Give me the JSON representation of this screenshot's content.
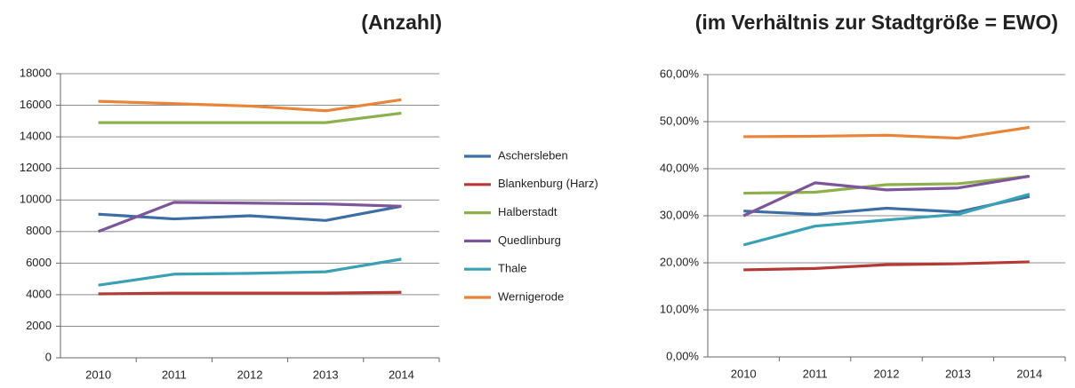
{
  "chart_data": [
    {
      "type": "line",
      "title": "(Anzahl)",
      "categories": [
        "2010",
        "2011",
        "2012",
        "2013",
        "2014"
      ],
      "ylim": [
        0,
        18000
      ],
      "yticks": [
        0,
        2000,
        4000,
        6000,
        8000,
        10000,
        12000,
        14000,
        16000,
        18000
      ],
      "grid": true,
      "series": [
        {
          "name": "Aschersleben",
          "color": "#3c6ea5",
          "values": [
            9100,
            8800,
            9000,
            8700,
            9600
          ]
        },
        {
          "name": "Blankenburg (Harz)",
          "color": "#b53a35",
          "values": [
            4050,
            4100,
            4100,
            4100,
            4150
          ]
        },
        {
          "name": "Halberstadt",
          "color": "#8db04c",
          "values": [
            14900,
            14900,
            14900,
            14900,
            15500
          ]
        },
        {
          "name": "Quedlinburg",
          "color": "#7c559b",
          "values": [
            8000,
            9850,
            9800,
            9750,
            9600
          ]
        },
        {
          "name": "Thale",
          "color": "#3aa0b5",
          "values": [
            4600,
            5300,
            5350,
            5450,
            6250
          ]
        },
        {
          "name": "Wernigerode",
          "color": "#e8853a",
          "values": [
            16250,
            16100,
            15950,
            15650,
            16350
          ]
        }
      ]
    },
    {
      "type": "line",
      "title": "(im Verhältnis zur Stadtgröße = EWO)",
      "categories": [
        "2010",
        "2011",
        "2012",
        "2013",
        "2014"
      ],
      "ylim": [
        0,
        60
      ],
      "yticks": [
        {
          "value": 0,
          "label": "0,00%"
        },
        {
          "value": 10,
          "label": "10,00%"
        },
        {
          "value": 20,
          "label": "20,00%"
        },
        {
          "value": 30,
          "label": "30,00%"
        },
        {
          "value": 40,
          "label": "40,00%"
        },
        {
          "value": 50,
          "label": "50,00%"
        },
        {
          "value": 60,
          "label": "60,00%"
        }
      ],
      "grid": true,
      "series": [
        {
          "color": "#3c6ea5",
          "values": [
            31.0,
            30.3,
            31.6,
            30.8,
            34.1
          ]
        },
        {
          "color": "#b53a35",
          "values": [
            18.5,
            18.8,
            19.6,
            19.8,
            20.2
          ]
        },
        {
          "color": "#8db04c",
          "values": [
            34.8,
            35.0,
            36.6,
            36.8,
            38.4
          ]
        },
        {
          "color": "#7c559b",
          "values": [
            30.0,
            37.0,
            35.5,
            35.9,
            38.4
          ]
        },
        {
          "color": "#3aa0b5",
          "values": [
            23.8,
            27.8,
            29.1,
            30.3,
            34.6
          ]
        },
        {
          "color": "#e8853a",
          "values": [
            46.8,
            46.9,
            47.1,
            46.5,
            48.8
          ]
        }
      ]
    }
  ]
}
